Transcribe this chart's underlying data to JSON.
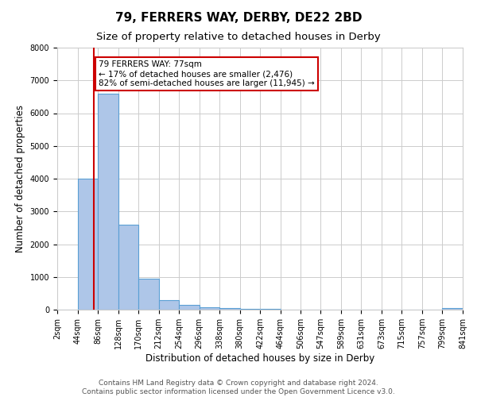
{
  "title": "79, FERRERS WAY, DERBY, DE22 2BD",
  "subtitle": "Size of property relative to detached houses in Derby",
  "xlabel": "Distribution of detached houses by size in Derby",
  "ylabel": "Number of detached properties",
  "bin_edges": [
    2,
    44,
    86,
    128,
    170,
    212,
    254,
    296,
    338,
    380,
    422,
    464,
    506,
    547,
    589,
    631,
    673,
    715,
    757,
    799,
    841
  ],
  "bar_heights": [
    0,
    4000,
    6600,
    2600,
    950,
    300,
    150,
    80,
    50,
    30,
    20,
    10,
    5,
    5,
    3,
    3,
    2,
    2,
    1,
    60
  ],
  "bar_color": "#aec6e8",
  "bar_edgecolor": "#5a9fd4",
  "property_size": 77,
  "red_line_color": "#cc0000",
  "annotation_text": "79 FERRERS WAY: 77sqm\n← 17% of detached houses are smaller (2,476)\n82% of semi-detached houses are larger (11,945) →",
  "annotation_box_color": "#ffffff",
  "annotation_box_edgecolor": "#cc0000",
  "ylim": [
    0,
    8000
  ],
  "tick_labels": [
    "2sqm",
    "44sqm",
    "86sqm",
    "128sqm",
    "170sqm",
    "212sqm",
    "254sqm",
    "296sqm",
    "338sqm",
    "380sqm",
    "422sqm",
    "464sqm",
    "506sqm",
    "547sqm",
    "589sqm",
    "631sqm",
    "673sqm",
    "715sqm",
    "757sqm",
    "799sqm",
    "841sqm"
  ],
  "footer_text": "Contains HM Land Registry data © Crown copyright and database right 2024.\nContains public sector information licensed under the Open Government Licence v3.0.",
  "title_fontsize": 11,
  "subtitle_fontsize": 9.5,
  "axis_label_fontsize": 8.5,
  "tick_fontsize": 7,
  "footer_fontsize": 6.5,
  "annotation_fontsize": 7.5
}
